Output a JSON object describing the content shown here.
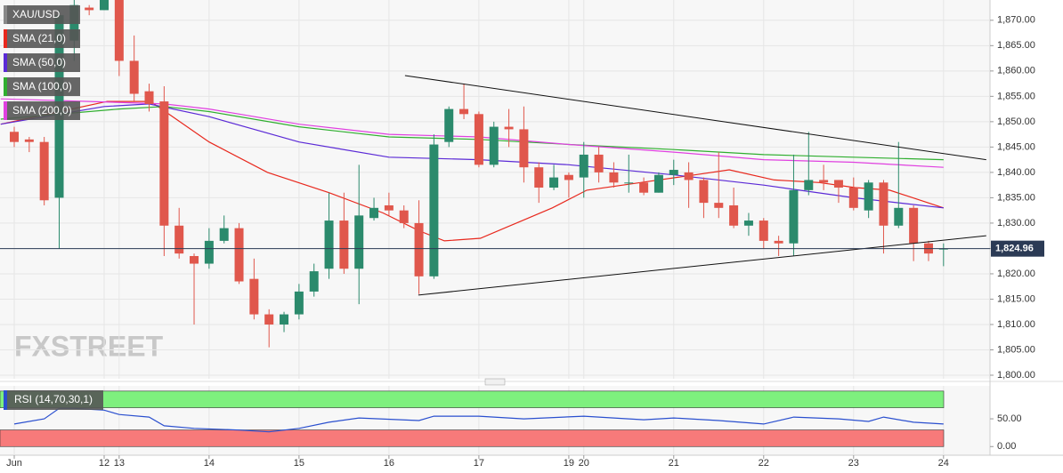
{
  "chart_data": {
    "type": "candlestick",
    "symbol": "XAU/USD",
    "categories": [
      "Jun",
      null,
      null,
      null,
      null,
      null,
      "12",
      "13",
      null,
      null,
      null,
      null,
      null,
      "14",
      null,
      null,
      null,
      null,
      null,
      "15",
      null,
      null,
      null,
      null,
      null,
      "16",
      null,
      null,
      null,
      null,
      null,
      "17",
      null,
      null,
      null,
      null,
      null,
      "19",
      "20",
      null,
      null,
      null,
      null,
      null,
      "21",
      null,
      null,
      null,
      null,
      null,
      "22",
      null,
      null,
      null,
      null,
      null,
      "23",
      null,
      null,
      null,
      null,
      null,
      "24"
    ],
    "open": [
      1848,
      1846.5,
      1846,
      1835,
      1866,
      1872.5,
      1872,
      1874,
      1862,
      1856,
      1854,
      1829.5,
      1823.5,
      1822,
      1826.5,
      1829,
      1819,
      1812,
      1810,
      1812,
      1816.5,
      1821,
      1830.5,
      1821,
      1831,
      1833.5,
      1832.5,
      1830,
      1819.5,
      1846,
      1852.5,
      1851.5,
      1841.5,
      1849,
      1848.5,
      1841,
      1837,
      1839.5,
      1839,
      1843.5,
      1840,
      1838,
      1838,
      1836,
      1839.5,
      1840,
      1838.5,
      1834,
      1833.5,
      1829.5,
      1830.5,
      1826.5,
      1826,
      1836.5,
      1838.5,
      1838.5,
      1837,
      1832.5,
      1838,
      1829.5,
      1833,
      1826,
      1824.8
    ],
    "high": [
      1849,
      1847,
      1847,
      1872,
      1874,
      1873,
      1875,
      1874.5,
      1867,
      1857.5,
      1857,
      1833,
      1824,
      1829,
      1831.5,
      1830,
      1823,
      1813,
      1812.5,
      1818,
      1822,
      1836,
      1836,
      1841.5,
      1835,
      1836,
      1833.5,
      1834.5,
      1847.5,
      1853,
      1857.5,
      1852,
      1850,
      1852.5,
      1853,
      1842,
      1841.5,
      1840,
      1846,
      1845,
      1842,
      1843.5,
      1839,
      1840,
      1842.5,
      1842,
      1839,
      1844,
      1837,
      1832,
      1831,
      1827.5,
      1843.5,
      1848,
      1841.5,
      1838.5,
      1839,
      1838.5,
      1838.5,
      1846,
      1833.5,
      1826.5,
      1826
    ],
    "low": [
      1845,
      1844,
      1833.5,
      1825,
      1862,
      1871,
      1872,
      1859,
      1854,
      1852,
      1823.5,
      1823,
      1810,
      1821,
      1826,
      1818,
      1811,
      1805.5,
      1808.5,
      1811,
      1815.5,
      1819,
      1820,
      1814,
      1830.5,
      1831.5,
      1829,
      1816,
      1819,
      1845,
      1850.5,
      1841,
      1841,
      1845,
      1838,
      1834,
      1836.5,
      1835,
      1835,
      1838,
      1837,
      1836,
      1835.5,
      1836,
      1837.5,
      1833,
      1831,
      1831,
      1829,
      1827.5,
      1825,
      1823.5,
      1823.5,
      1835.5,
      1836.5,
      1834,
      1832.5,
      1831,
      1824,
      1829,
      1822.5,
      1822.5,
      1821.5
    ],
    "close": [
      1846,
      1846,
      1834.5,
      1871,
      1873,
      1872,
      1874.5,
      1862,
      1855.5,
      1853.5,
      1829.5,
      1824,
      1822,
      1826.5,
      1829,
      1818.5,
      1812,
      1810,
      1812,
      1816.5,
      1820.5,
      1830.5,
      1821,
      1831.5,
      1833,
      1832.5,
      1830,
      1819.5,
      1845.5,
      1852.5,
      1851.5,
      1841.5,
      1849,
      1848.5,
      1841,
      1837,
      1839,
      1838.5,
      1843.5,
      1840,
      1838,
      1838,
      1836,
      1839.5,
      1840.5,
      1838.5,
      1834,
      1833,
      1829.5,
      1830.5,
      1826.5,
      1826,
      1836.5,
      1838.5,
      1838,
      1837,
      1833,
      1838,
      1829.5,
      1833,
      1826,
      1824,
      1824.96
    ],
    "up_color": "#2b8a6c",
    "down_color": "#e0574c",
    "xlim": [
      -0.95,
      65.1
    ],
    "ylim": [
      1799.3,
      1874.0
    ],
    "yticks": [
      {
        "value": 1800,
        "label": "1,800.00"
      },
      {
        "value": 1805,
        "label": "1,805.00"
      },
      {
        "value": 1810,
        "label": "1,810.00"
      },
      {
        "value": 1815,
        "label": "1,815.00"
      },
      {
        "value": 1820,
        "label": "1,820.00"
      },
      {
        "value": 1825,
        "label": "1,825.00"
      },
      {
        "value": 1830,
        "label": "1,830.00"
      },
      {
        "value": 1835,
        "label": "1,835.00"
      },
      {
        "value": 1840,
        "label": "1,840.00"
      },
      {
        "value": 1845,
        "label": "1,845.00"
      },
      {
        "value": 1850,
        "label": "1,850.00"
      },
      {
        "value": 1855,
        "label": "1,855.00"
      },
      {
        "value": 1860,
        "label": "1,860.00"
      },
      {
        "value": 1865,
        "label": "1,865.00"
      },
      {
        "value": 1870,
        "label": "1,870.00"
      }
    ],
    "grid": true,
    "last_price": {
      "value": 1824.96,
      "label": "1,824.96"
    },
    "overlays": [
      {
        "name": "SMA (21,0)",
        "color": "#e8281d",
        "x": [
          -0.9,
          6.2,
          9.1,
          13,
          16.9,
          21,
          24.6,
          27,
          28.7,
          31.1,
          33.5,
          35.9,
          38.2,
          41.8,
          45.4,
          47.7,
          50.7,
          53.7,
          56.1,
          58.4,
          62
        ],
        "values": [
          1849.5,
          1854,
          1854,
          1846,
          1840,
          1836,
          1832,
          1828.5,
          1826.5,
          1827,
          1830,
          1833,
          1836.5,
          1838,
          1839.5,
          1840.5,
          1838.5,
          1838,
          1837,
          1836.5,
          1833
        ]
      },
      {
        "name": "SMA (50,0)",
        "color": "#5b2ad6",
        "x": [
          -0.9,
          6,
          9,
          13,
          19,
          25,
          31,
          37,
          44,
          50,
          56,
          62
        ],
        "values": [
          1849.5,
          1853,
          1853.5,
          1851,
          1846,
          1843,
          1842.5,
          1841.5,
          1839.5,
          1837.5,
          1835,
          1833
        ]
      },
      {
        "name": "SMA (100,0)",
        "color": "#2fae2f",
        "x": [
          -0.9,
          7,
          10,
          13,
          19,
          25,
          31,
          37,
          44,
          50,
          56,
          62
        ],
        "values": [
          1850.5,
          1852.5,
          1853,
          1852,
          1849,
          1847,
          1846.5,
          1845.5,
          1844.5,
          1843.5,
          1843,
          1842.5
        ]
      },
      {
        "name": "SMA (200,0)",
        "color": "#e040e0",
        "x": [
          -0.9,
          5,
          10,
          13,
          19,
          25,
          31,
          37,
          44,
          50,
          56,
          62
        ],
        "values": [
          1854.5,
          1854,
          1853.5,
          1852.5,
          1849.5,
          1847.5,
          1847,
          1845.5,
          1844,
          1842.5,
          1842,
          1841
        ]
      }
    ],
    "trendlines": [
      {
        "x": [
          26.07,
          64.85
        ],
        "values": [
          1859.1,
          1842.5
        ]
      },
      {
        "x": [
          26.96,
          64.85
        ],
        "values": [
          1815.8,
          1827.5
        ]
      }
    ],
    "rsi": {
      "name": "RSI (14,70,30,1)",
      "color": "#2a4fcf",
      "x": [
        0,
        2,
        3,
        4,
        6,
        7,
        9,
        10,
        12,
        15,
        17,
        19,
        21,
        23,
        27,
        28,
        31,
        34,
        38,
        42,
        44,
        47,
        50,
        52,
        55,
        57,
        58,
        60,
        62
      ],
      "values": [
        40.6,
        50,
        68.8,
        68.8,
        65.6,
        57.8,
        53.1,
        37.5,
        32.8,
        29.7,
        26.6,
        32.8,
        43.8,
        51.6,
        46.9,
        54.7,
        54.7,
        50,
        54.7,
        48.4,
        51.6,
        46.9,
        40.6,
        53.1,
        50,
        45.3,
        53.1,
        43.8,
        40.6
      ],
      "ylim": [
        -15.6,
        109.4
      ],
      "yticks": [
        {
          "value": 0,
          "label": "0.00"
        },
        {
          "value": 50,
          "label": "50.00"
        }
      ],
      "overbought": [
        70,
        100
      ],
      "overbought_color": "#7ef07e",
      "oversold": [
        0,
        30
      ],
      "oversold_color": "#f77a7a"
    },
    "watermark": "FXSTREET"
  }
}
